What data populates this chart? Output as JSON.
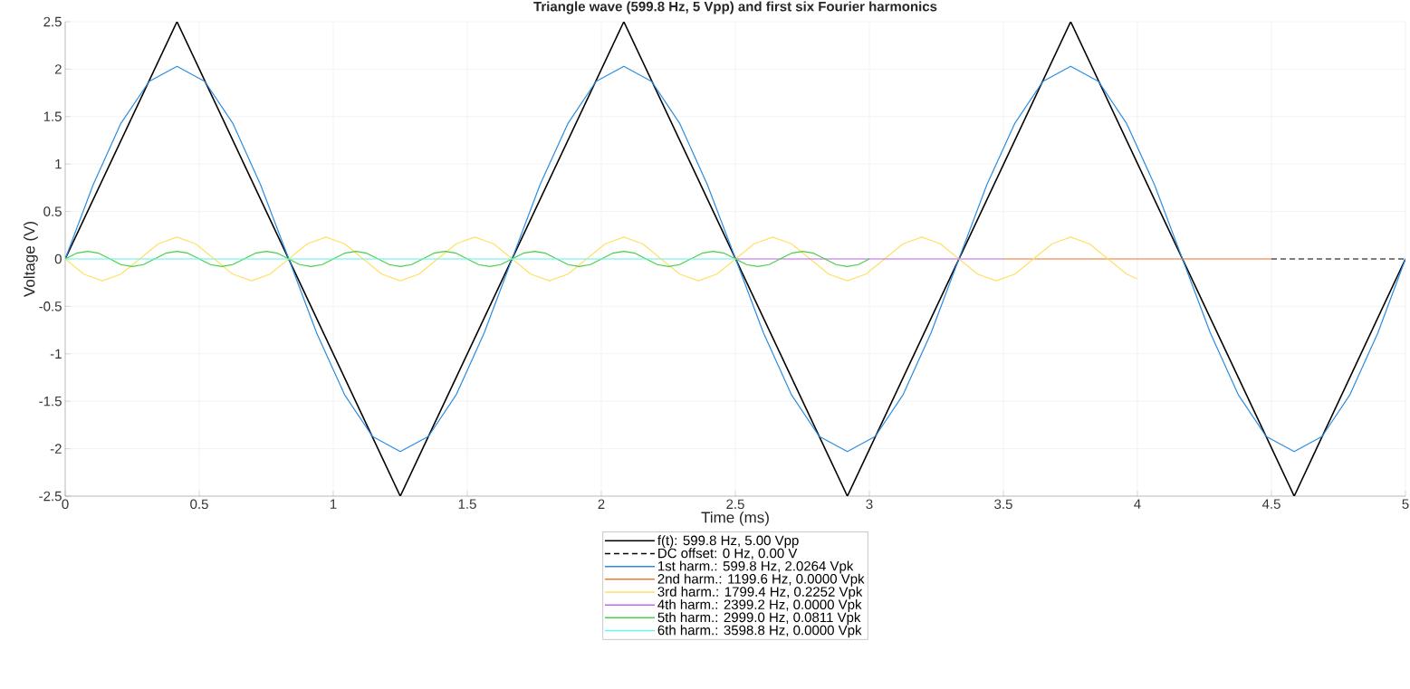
{
  "chart_data": {
    "type": "line",
    "title": "Triangle wave (599.8 Hz, 5 Vpp) and first six Fourier harmonics",
    "xlabel": "Time (ms)",
    "ylabel": "Voltage (V)",
    "xlim": [
      0,
      5
    ],
    "ylim": [
      -2.5,
      2.5
    ],
    "xticks": [
      0,
      0.5,
      1,
      1.5,
      2,
      2.5,
      3,
      3.5,
      4,
      4.5,
      5
    ],
    "yticks": [
      -2.5,
      -2,
      -1.5,
      -1,
      -0.5,
      0,
      0.5,
      1,
      1.5,
      2,
      2.5
    ],
    "grid": true,
    "legend": "bottom",
    "marker": "none",
    "series": [
      {
        "name": "f(t): 599.8 Hz, 5.00 Vpp",
        "color": "#000000",
        "line_style": "solid",
        "x": [
          0,
          0.417,
          1.25,
          2.084,
          2.918,
          3.751,
          4.585,
          5.0
        ],
        "values": [
          0,
          2.5,
          -2.5,
          2.5,
          -2.5,
          2.5,
          -2.5,
          0
        ]
      },
      {
        "name": "DC offset: 0 Hz, 0.00 V",
        "color": "#000000",
        "line_style": "dashed",
        "x": [
          4.5,
          5
        ],
        "values": [
          0,
          0
        ]
      },
      {
        "name": "1st harm.: 599.8 Hz, 2.0264 Vpk",
        "color": "#2b8de0",
        "line_style": "solid",
        "x": [
          0,
          0.104,
          0.208,
          0.313,
          0.417,
          0.521,
          0.625,
          0.729,
          0.834,
          0.938,
          1.042,
          1.146,
          1.25,
          1.355,
          1.459,
          1.563,
          1.667,
          1.771,
          1.876,
          1.98,
          2.084,
          2.188,
          2.292,
          2.396,
          2.501,
          2.605,
          2.709,
          2.813,
          2.918,
          3.022,
          3.126,
          3.23,
          3.334,
          3.438,
          3.543,
          3.647,
          3.751,
          3.855,
          3.959,
          4.064,
          4.168,
          4.272,
          4.376,
          4.48,
          4.585,
          4.689,
          4.793,
          4.897,
          5.0
        ],
        "values": [
          0,
          0.78,
          1.43,
          1.87,
          2.03,
          1.87,
          1.43,
          0.78,
          0,
          -0.78,
          -1.43,
          -1.87,
          -2.03,
          -1.87,
          -1.43,
          -0.78,
          0,
          0.78,
          1.43,
          1.87,
          2.03,
          1.87,
          1.43,
          0.78,
          0,
          -0.78,
          -1.43,
          -1.87,
          -2.03,
          -1.87,
          -1.43,
          -0.78,
          0,
          0.78,
          1.43,
          1.87,
          2.03,
          1.87,
          1.43,
          0.78,
          0,
          -0.78,
          -1.43,
          -1.87,
          -2.03,
          -1.87,
          -1.43,
          -0.78,
          0
        ]
      },
      {
        "name": "2nd harm.: 1199.6 Hz, 0.0000 Vpk",
        "color": "#f07a2c",
        "line_style": "solid",
        "x": [
          3.5,
          4.5
        ],
        "values": [
          0,
          0
        ]
      },
      {
        "name": "3rd harm.: 1799.4 Hz, 0.2252 Vpk",
        "color": "#ffe066",
        "line_style": "solid",
        "x": [
          0,
          0.069,
          0.139,
          0.208,
          0.278,
          0.347,
          0.417,
          0.486,
          0.556,
          0.625,
          0.695,
          0.764,
          0.834,
          0.903,
          0.973,
          1.042,
          1.112,
          1.181,
          1.25,
          1.32,
          1.389,
          1.459,
          1.528,
          1.598,
          1.667,
          1.737,
          1.806,
          1.876,
          1.945,
          2.015,
          2.084,
          2.154,
          2.223,
          2.293,
          2.362,
          2.431,
          2.501,
          2.57,
          2.64,
          2.709,
          2.779,
          2.848,
          2.918,
          2.987,
          3.057,
          3.126,
          3.196,
          3.265,
          3.334,
          3.404,
          3.473,
          3.543,
          3.612,
          3.682,
          3.751,
          3.821,
          3.89,
          3.96,
          4.0
        ],
        "values": [
          0,
          -0.16,
          -0.23,
          -0.16,
          0,
          0.16,
          0.23,
          0.16,
          0,
          -0.16,
          -0.23,
          -0.16,
          0,
          0.16,
          0.23,
          0.16,
          0,
          -0.16,
          -0.23,
          -0.16,
          0,
          0.16,
          0.23,
          0.16,
          0,
          -0.16,
          -0.23,
          -0.16,
          0,
          0.16,
          0.23,
          0.16,
          0,
          -0.16,
          -0.23,
          -0.16,
          0,
          0.16,
          0.23,
          0.16,
          0,
          -0.16,
          -0.23,
          -0.16,
          0,
          0.16,
          0.23,
          0.16,
          0,
          -0.16,
          -0.23,
          -0.16,
          0,
          0.16,
          0.23,
          0.16,
          0,
          -0.16,
          -0.21
        ]
      },
      {
        "name": "4th harm.: 2399.2 Hz, 0.0000 Vpk",
        "color": "#c266f5",
        "line_style": "solid",
        "x": [
          2.5,
          3.5
        ],
        "values": [
          0,
          0
        ]
      },
      {
        "name": "5th harm.: 2999.0 Hz, 0.0811 Vpk",
        "color": "#47d147",
        "line_style": "solid",
        "x": [
          0,
          0.042,
          0.083,
          0.125,
          0.167,
          0.208,
          0.25,
          0.292,
          0.333,
          0.375,
          0.417,
          0.458,
          0.5,
          0.542,
          0.584,
          0.625,
          0.667,
          0.709,
          0.75,
          0.792,
          0.834,
          0.875,
          0.917,
          0.959,
          1.0,
          1.042,
          1.084,
          1.125,
          1.167,
          1.209,
          1.25,
          1.292,
          1.334,
          1.375,
          1.417,
          1.459,
          1.5,
          1.542,
          1.584,
          1.625,
          1.667,
          1.709,
          1.751,
          1.792,
          1.834,
          1.876,
          1.917,
          1.959,
          2.001,
          2.042,
          2.084,
          2.126,
          2.167,
          2.209,
          2.251,
          2.292,
          2.334,
          2.376,
          2.417,
          2.459,
          2.501,
          2.542,
          2.584,
          2.626,
          2.667,
          2.709,
          2.751,
          2.792,
          2.834,
          2.876,
          2.917,
          2.959,
          3.0
        ],
        "values": [
          0,
          0.06,
          0.08,
          0.06,
          0,
          -0.06,
          -0.08,
          -0.06,
          0,
          0.06,
          0.08,
          0.06,
          0,
          -0.06,
          -0.08,
          -0.06,
          0,
          0.06,
          0.08,
          0.06,
          0,
          -0.06,
          -0.08,
          -0.06,
          0,
          0.06,
          0.08,
          0.06,
          0,
          -0.06,
          -0.08,
          -0.06,
          0,
          0.06,
          0.08,
          0.06,
          0,
          -0.06,
          -0.08,
          -0.06,
          0,
          0.06,
          0.08,
          0.06,
          0,
          -0.06,
          -0.08,
          -0.06,
          0,
          0.06,
          0.08,
          0.06,
          0,
          -0.06,
          -0.08,
          -0.06,
          0,
          0.06,
          0.08,
          0.06,
          0,
          -0.06,
          -0.08,
          -0.06,
          0,
          0.06,
          0.08,
          0.06,
          0,
          -0.06,
          -0.08,
          -0.06,
          0
        ]
      },
      {
        "name": "6th harm.: 3598.8 Hz, 0.0000 Vpk",
        "color": "#66f5f5",
        "line_style": "solid",
        "x": [
          0,
          2.5
        ],
        "values": [
          0,
          0
        ]
      }
    ]
  }
}
